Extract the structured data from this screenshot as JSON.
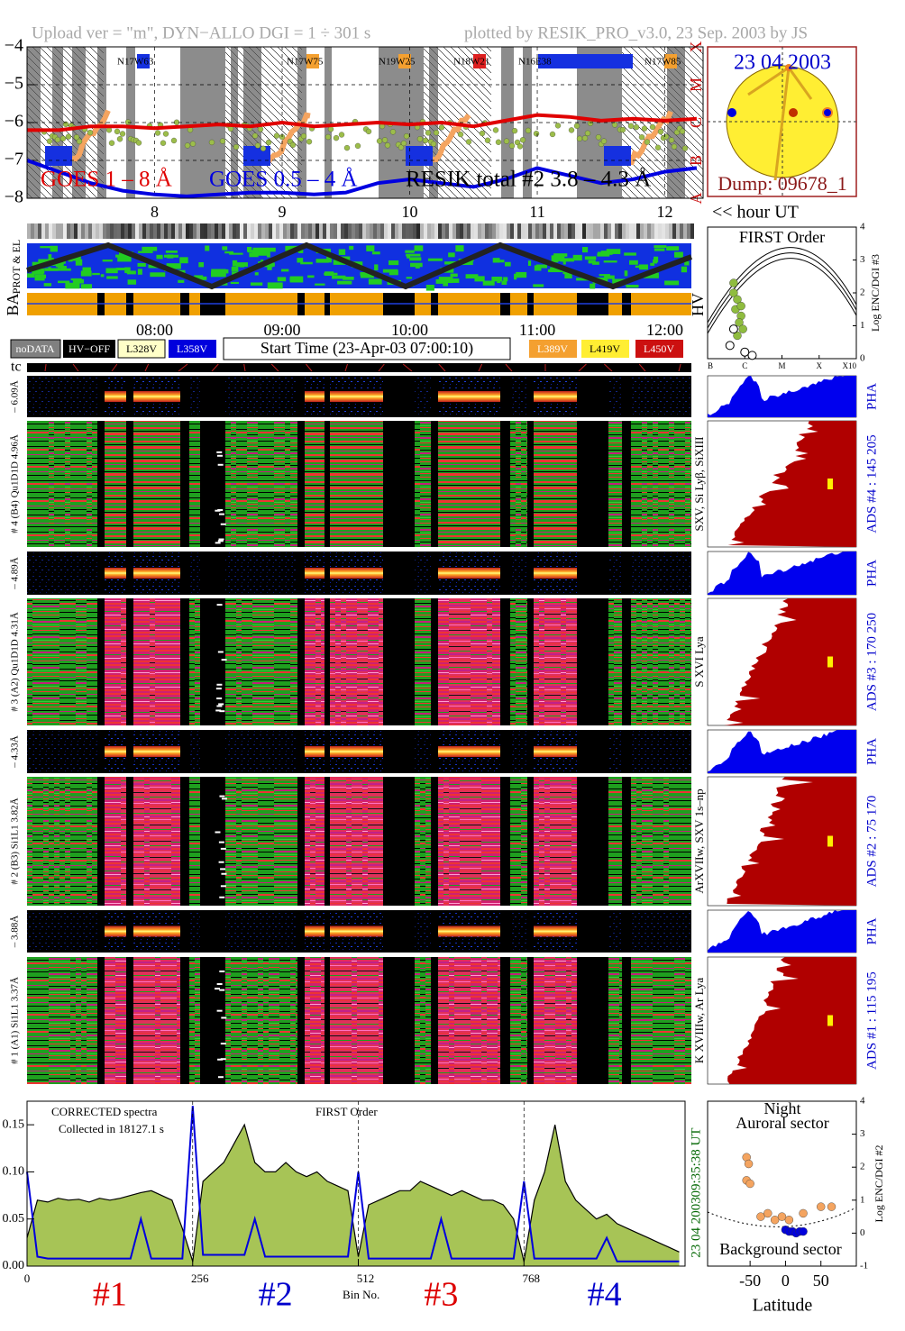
{
  "header": {
    "upload": "Upload ver = \"m\", DYN−ALLO DGI =   1 ÷ 301 s",
    "plotted": "plotted by RESIK_PRO_v3.0, 23 Sep. 2003 by JS"
  },
  "chart_data": [
    {
      "type": "line",
      "x": [
        7,
        7.25,
        7.5,
        7.75,
        8,
        8.25,
        8.5,
        8.75,
        9,
        9.25,
        9.5,
        9.75,
        10,
        10.25,
        10.5,
        10.75,
        11,
        11.25,
        11.5,
        11.75,
        12,
        12.25
      ],
      "series": [
        {
          "name": "GOES 1 – 8 Å",
          "color": "#e00000",
          "values": [
            -6.2,
            -6.2,
            -6.1,
            -6.1,
            -6.15,
            -6.1,
            -6.05,
            -6.1,
            -6.0,
            -6.1,
            -6.05,
            -6.0,
            -6.05,
            -6.0,
            -6.1,
            -5.95,
            -5.8,
            -5.85,
            -5.95,
            -5.9,
            -5.95,
            -5.9
          ]
        },
        {
          "name": "GOES 0.5 – 4 Å",
          "color": "#0000e0",
          "values": [
            -7.0,
            -7.3,
            -7.6,
            -7.8,
            -7.9,
            -7.95,
            -7.9,
            -7.85,
            -7.85,
            -7.9,
            -7.85,
            -7.6,
            -7.5,
            -7.6,
            -7.7,
            -7.5,
            -7.2,
            -7.4,
            -7.6,
            -7.5,
            -7.3,
            -7.2
          ]
        }
      ],
      "annotations": [
        "RESIK total #2  3.8 – 4.3 Å"
      ],
      "regions": [
        "N17W63",
        "N17W75",
        "N19W25",
        "N18W21",
        "N16E38",
        "N17W85"
      ],
      "xlim": [
        7,
        12.3
      ],
      "xticks": [
        8,
        9,
        10,
        11,
        12
      ],
      "xlabel": "<< hour UT",
      "ylim": [
        -8,
        -4
      ],
      "yticks": [
        {
          "value": -8,
          "label": "−8"
        },
        {
          "value": -7,
          "label": "−7"
        },
        {
          "value": -6,
          "label": "−6"
        },
        {
          "value": -5,
          "label": "−5"
        },
        {
          "value": -4,
          "label": "−4"
        }
      ],
      "y2ticks": [
        {
          "value": -8,
          "label": "A"
        },
        {
          "value": -7,
          "label": "B"
        },
        {
          "value": -6,
          "label": "C"
        },
        {
          "value": -5,
          "label": "M"
        },
        {
          "value": -4,
          "label": "X"
        }
      ],
      "grid": true
    },
    {
      "type": "scatter",
      "title": "FIRST Order",
      "ylabel": "Log ENC/DGI #3",
      "xlim": [
        -7,
        -3
      ],
      "xticks": [
        {
          "value": -7,
          "label": "B"
        },
        {
          "value": -6,
          "label": "C"
        },
        {
          "value": -5,
          "label": "M"
        },
        {
          "value": -4,
          "label": "X"
        },
        {
          "value": -3,
          "label": "X10"
        }
      ],
      "ylim": [
        0,
        4
      ],
      "yticks": [
        0,
        1,
        2,
        3,
        4
      ],
      "series": [
        {
          "color": "#8fbc3f",
          "marker": "filled",
          "x": [
            -6.3,
            -6.2,
            -6.25,
            -6.1,
            -6.15,
            -6.05,
            -6.2,
            -6.1,
            -6.3
          ],
          "values": [
            2.0,
            1.8,
            1.5,
            1.3,
            1.1,
            0.9,
            0.7,
            1.6,
            2.3
          ]
        },
        {
          "color": "#000000",
          "marker": "open",
          "x": [
            -6.4,
            -6.0,
            -5.8,
            -6.3
          ],
          "values": [
            0.4,
            0.2,
            0.1,
            0.9
          ]
        }
      ]
    },
    {
      "type": "area",
      "annotations": [
        "CORRECTED spectra",
        "Collected in 18127.1 s",
        "FIRST Order"
      ],
      "time": "09:35:38 UT",
      "date": "23 04 2003",
      "segment_labels": [
        "#1",
        "#2",
        "#3",
        "#4"
      ],
      "segment_colors": [
        "#dd0000",
        "#0000cc",
        "#dd0000",
        "#0000cc"
      ],
      "x": [
        0,
        16,
        32,
        48,
        64,
        80,
        96,
        112,
        128,
        144,
        160,
        176,
        192,
        208,
        224,
        240,
        256,
        272,
        288,
        304,
        320,
        336,
        352,
        368,
        384,
        400,
        416,
        432,
        448,
        464,
        480,
        496,
        512,
        528,
        544,
        560,
        576,
        592,
        608,
        624,
        640,
        656,
        672,
        688,
        704,
        720,
        736,
        752,
        768,
        784,
        800,
        816,
        832,
        848,
        864,
        880,
        896,
        912,
        928,
        944,
        960,
        976,
        992,
        1008
      ],
      "series": [
        {
          "color": "#a7c456",
          "values": [
            0.03,
            0.07,
            0.068,
            0.072,
            0.07,
            0.071,
            0.068,
            0.072,
            0.07,
            0.072,
            0.075,
            0.078,
            0.08,
            0.075,
            0.07,
            0.04,
            0.005,
            0.09,
            0.1,
            0.11,
            0.13,
            0.15,
            0.11,
            0.1,
            0.1,
            0.11,
            0.1,
            0.095,
            0.1,
            0.09,
            0.085,
            0.08,
            0.01,
            0.065,
            0.07,
            0.075,
            0.08,
            0.08,
            0.09,
            0.085,
            0.08,
            0.075,
            0.08,
            0.075,
            0.07,
            0.07,
            0.065,
            0.05,
            0.005,
            0.07,
            0.1,
            0.15,
            0.09,
            0.07,
            0.06,
            0.05,
            0.055,
            0.045,
            0.04,
            0.035,
            0.03,
            0.025,
            0.02,
            0.015
          ]
        },
        {
          "color": "#0000dd",
          "values": [
            0.1,
            0.01,
            0.008,
            0.008,
            0.008,
            0.008,
            0.008,
            0.008,
            0.008,
            0.008,
            0.008,
            0.05,
            0.008,
            0.008,
            0.008,
            0.008,
            0.17,
            0.012,
            0.012,
            0.012,
            0.012,
            0.012,
            0.05,
            0.01,
            0.01,
            0.01,
            0.01,
            0.01,
            0.01,
            0.01,
            0.01,
            0.01,
            0.1,
            0.008,
            0.008,
            0.008,
            0.008,
            0.008,
            0.008,
            0.008,
            0.05,
            0.008,
            0.008,
            0.008,
            0.008,
            0.008,
            0.008,
            0.008,
            0.09,
            0.008,
            0.008,
            0.008,
            0.008,
            0.008,
            0.008,
            0.008,
            0.03,
            0.005,
            0.005,
            0.005,
            0.005,
            0.005,
            0.005,
            0.005
          ]
        }
      ],
      "xlim": [
        0,
        1017
      ],
      "xticks": [
        0,
        256,
        512,
        768
      ],
      "xlabel": "Bin No.",
      "ylim": [
        0,
        0.175
      ],
      "yticks": [
        {
          "value": 0,
          "label": "0.00"
        },
        {
          "value": 0.05,
          "label": "0.05"
        },
        {
          "value": 0.1,
          "label": "0.10"
        },
        0.15
      ]
    },
    {
      "type": "scatter",
      "title": "Night",
      "subtitle": "Auroral sector",
      "annotations": [
        "Background sector"
      ],
      "xlabel": "Latitude",
      "ylabel": "Log ENC/DGI #2",
      "xlim": [
        -110,
        100
      ],
      "xticks": [
        -50,
        0,
        50
      ],
      "ylim": [
        -1,
        4
      ],
      "yticks": [
        -1,
        0,
        1,
        2,
        3,
        4
      ],
      "series": [
        {
          "color": "#f4a460",
          "marker": "filled",
          "x": [
            -55,
            -52,
            -55,
            -50,
            -35,
            -25,
            -15,
            -5,
            5,
            25,
            50,
            65
          ],
          "values": [
            2.3,
            2.1,
            1.6,
            1.5,
            0.5,
            0.6,
            0.4,
            0.5,
            0.4,
            0.6,
            0.8,
            0.8
          ]
        },
        {
          "color": "#0000dd",
          "marker": "filled",
          "x": [
            0,
            5,
            10,
            15,
            20,
            25
          ],
          "values": [
            0.1,
            0.05,
            0.05,
            0.0,
            0.05,
            0.05
          ]
        }
      ]
    }
  ],
  "sun": {
    "date": "23 04 2003",
    "dump": "Dump: 09678_1"
  },
  "strips": {
    "prot": "PROT & EL",
    "ba": "BA",
    "hv": "HV"
  },
  "times": [
    "08:00",
    "09:00",
    "10:00",
    "11:00",
    "12:00"
  ],
  "legend": {
    "nodata": "noDATA",
    "hvoff": "HV−OFF",
    "l328": "L328V",
    "l358": "L358V",
    "start": "Start Time (23-Apr-03 07:00:10)",
    "l389": "L389V",
    "l419": "L419V",
    "l450": "L450V"
  },
  "tc": "tc",
  "channels": [
    {
      "small": "– 6.09Å",
      "big": "# 4 (B4) Qu1D1D 4.96Å",
      "lines": "SXV, Si Lyβ, SiXIII",
      "pha": "PHA",
      "ads": "ADS #4 :  145 205"
    },
    {
      "small": "– 4.89Å",
      "big": "# 3 (A2) Qu1D1D 4.31Å",
      "lines": "S XVI Lya",
      "pha": "PHA",
      "ads": "ADS #3 :  170 250"
    },
    {
      "small": "– 4.33Å",
      "big": "# 2 (B3) Si1L1 3.82Å",
      "lines": "ArXVIIw, SXV 1s–np",
      "pha": "PHA",
      "ads": "ADS #2 :  75 170"
    },
    {
      "small": "– 3.88Å",
      "big": "# 1 (A1) Si1L1 3.37Å",
      "lines": "K XVIIIw, Ar Lya",
      "pha": "PHA",
      "ads": "ADS #1 :  115 195"
    }
  ]
}
